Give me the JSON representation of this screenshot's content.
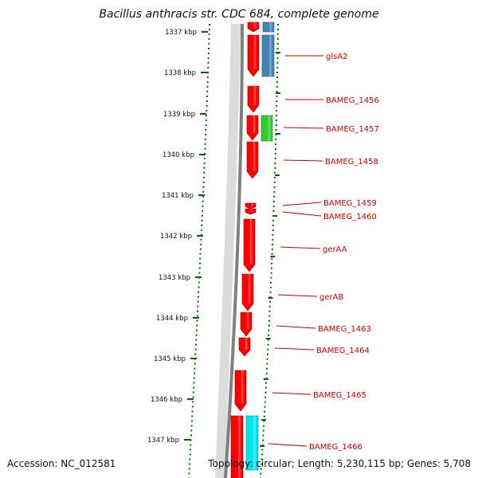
{
  "title": "Bacillus anthracis str. CDC 684, complete genome",
  "accession": "Accession: NC_012581",
  "topology": "Topology: circular; Length: 5,230,115 bp; Genes: 5,708",
  "colors": {
    "cds_red": "#ff0000",
    "rna_blue": "#4682b4",
    "green": "#33cc33",
    "cyan": "#00e5ee",
    "backbone": "#808080",
    "ruler": "#006400",
    "label": "#cc0000"
  },
  "ticks": [
    "1337 kbp",
    "1338 kbp",
    "1339 kbp",
    "1340 kbp",
    "1341 kbp",
    "1342 kbp",
    "1343 kbp",
    "1344 kbp",
    "1345 kbp",
    "1346 kbp",
    "1347 kbp"
  ],
  "genes": [
    {
      "label": "glsA2"
    },
    {
      "label": "BAMEG_1456"
    },
    {
      "label": "BAMEG_1457"
    },
    {
      "label": "BAMEG_1458"
    },
    {
      "label": "BAMEG_1459"
    },
    {
      "label": "BAMEG_1460"
    },
    {
      "label": "gerAA"
    },
    {
      "label": "gerAB"
    },
    {
      "label": "BAMEG_1463"
    },
    {
      "label": "BAMEG_1464"
    },
    {
      "label": "BAMEG_1465"
    },
    {
      "label": "BAMEG_1466"
    }
  ]
}
